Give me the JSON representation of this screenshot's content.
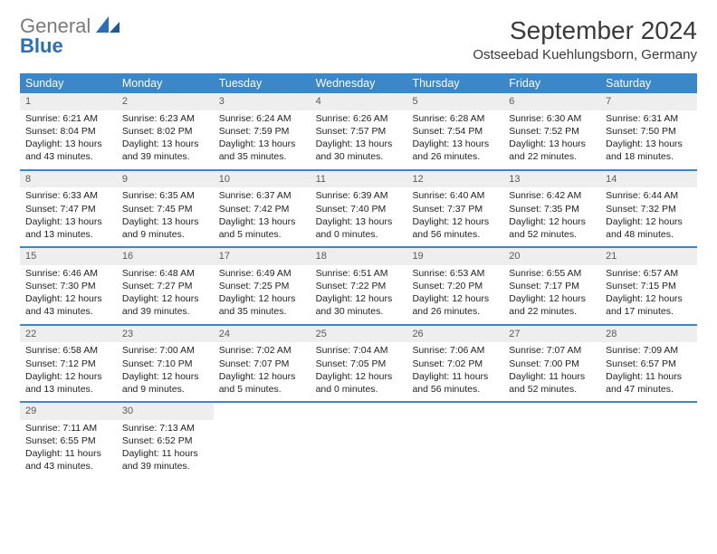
{
  "logo": {
    "word1": "General",
    "word2": "Blue"
  },
  "title": "September 2024",
  "location": "Ostseebad Kuehlungsborn, Germany",
  "theme": {
    "header_bg": "#3b87c8",
    "header_fg": "#ffffff",
    "daynum_bg": "#eeeeee",
    "daynum_fg": "#5a5a5a",
    "rule_color": "#3b87c8",
    "body_font_size": 10.5,
    "header_font_size": 12.5,
    "title_font_size": 28,
    "location_font_size": 15
  },
  "weekdays": [
    "Sunday",
    "Monday",
    "Tuesday",
    "Wednesday",
    "Thursday",
    "Friday",
    "Saturday"
  ],
  "days": [
    {
      "n": 1,
      "sunrise": "6:21 AM",
      "sunset": "8:04 PM",
      "daylight": "13 hours and 43 minutes."
    },
    {
      "n": 2,
      "sunrise": "6:23 AM",
      "sunset": "8:02 PM",
      "daylight": "13 hours and 39 minutes."
    },
    {
      "n": 3,
      "sunrise": "6:24 AM",
      "sunset": "7:59 PM",
      "daylight": "13 hours and 35 minutes."
    },
    {
      "n": 4,
      "sunrise": "6:26 AM",
      "sunset": "7:57 PM",
      "daylight": "13 hours and 30 minutes."
    },
    {
      "n": 5,
      "sunrise": "6:28 AM",
      "sunset": "7:54 PM",
      "daylight": "13 hours and 26 minutes."
    },
    {
      "n": 6,
      "sunrise": "6:30 AM",
      "sunset": "7:52 PM",
      "daylight": "13 hours and 22 minutes."
    },
    {
      "n": 7,
      "sunrise": "6:31 AM",
      "sunset": "7:50 PM",
      "daylight": "13 hours and 18 minutes."
    },
    {
      "n": 8,
      "sunrise": "6:33 AM",
      "sunset": "7:47 PM",
      "daylight": "13 hours and 13 minutes."
    },
    {
      "n": 9,
      "sunrise": "6:35 AM",
      "sunset": "7:45 PM",
      "daylight": "13 hours and 9 minutes."
    },
    {
      "n": 10,
      "sunrise": "6:37 AM",
      "sunset": "7:42 PM",
      "daylight": "13 hours and 5 minutes."
    },
    {
      "n": 11,
      "sunrise": "6:39 AM",
      "sunset": "7:40 PM",
      "daylight": "13 hours and 0 minutes."
    },
    {
      "n": 12,
      "sunrise": "6:40 AM",
      "sunset": "7:37 PM",
      "daylight": "12 hours and 56 minutes."
    },
    {
      "n": 13,
      "sunrise": "6:42 AM",
      "sunset": "7:35 PM",
      "daylight": "12 hours and 52 minutes."
    },
    {
      "n": 14,
      "sunrise": "6:44 AM",
      "sunset": "7:32 PM",
      "daylight": "12 hours and 48 minutes."
    },
    {
      "n": 15,
      "sunrise": "6:46 AM",
      "sunset": "7:30 PM",
      "daylight": "12 hours and 43 minutes."
    },
    {
      "n": 16,
      "sunrise": "6:48 AM",
      "sunset": "7:27 PM",
      "daylight": "12 hours and 39 minutes."
    },
    {
      "n": 17,
      "sunrise": "6:49 AM",
      "sunset": "7:25 PM",
      "daylight": "12 hours and 35 minutes."
    },
    {
      "n": 18,
      "sunrise": "6:51 AM",
      "sunset": "7:22 PM",
      "daylight": "12 hours and 30 minutes."
    },
    {
      "n": 19,
      "sunrise": "6:53 AM",
      "sunset": "7:20 PM",
      "daylight": "12 hours and 26 minutes."
    },
    {
      "n": 20,
      "sunrise": "6:55 AM",
      "sunset": "7:17 PM",
      "daylight": "12 hours and 22 minutes."
    },
    {
      "n": 21,
      "sunrise": "6:57 AM",
      "sunset": "7:15 PM",
      "daylight": "12 hours and 17 minutes."
    },
    {
      "n": 22,
      "sunrise": "6:58 AM",
      "sunset": "7:12 PM",
      "daylight": "12 hours and 13 minutes."
    },
    {
      "n": 23,
      "sunrise": "7:00 AM",
      "sunset": "7:10 PM",
      "daylight": "12 hours and 9 minutes."
    },
    {
      "n": 24,
      "sunrise": "7:02 AM",
      "sunset": "7:07 PM",
      "daylight": "12 hours and 5 minutes."
    },
    {
      "n": 25,
      "sunrise": "7:04 AM",
      "sunset": "7:05 PM",
      "daylight": "12 hours and 0 minutes."
    },
    {
      "n": 26,
      "sunrise": "7:06 AM",
      "sunset": "7:02 PM",
      "daylight": "11 hours and 56 minutes."
    },
    {
      "n": 27,
      "sunrise": "7:07 AM",
      "sunset": "7:00 PM",
      "daylight": "11 hours and 52 minutes."
    },
    {
      "n": 28,
      "sunrise": "7:09 AM",
      "sunset": "6:57 PM",
      "daylight": "11 hours and 47 minutes."
    },
    {
      "n": 29,
      "sunrise": "7:11 AM",
      "sunset": "6:55 PM",
      "daylight": "11 hours and 43 minutes."
    },
    {
      "n": 30,
      "sunrise": "7:13 AM",
      "sunset": "6:52 PM",
      "daylight": "11 hours and 39 minutes."
    }
  ],
  "labels": {
    "sunrise": "Sunrise:",
    "sunset": "Sunset:",
    "daylight": "Daylight:"
  },
  "layout": {
    "start_weekday": 0,
    "columns": 7,
    "total_days": 30
  }
}
